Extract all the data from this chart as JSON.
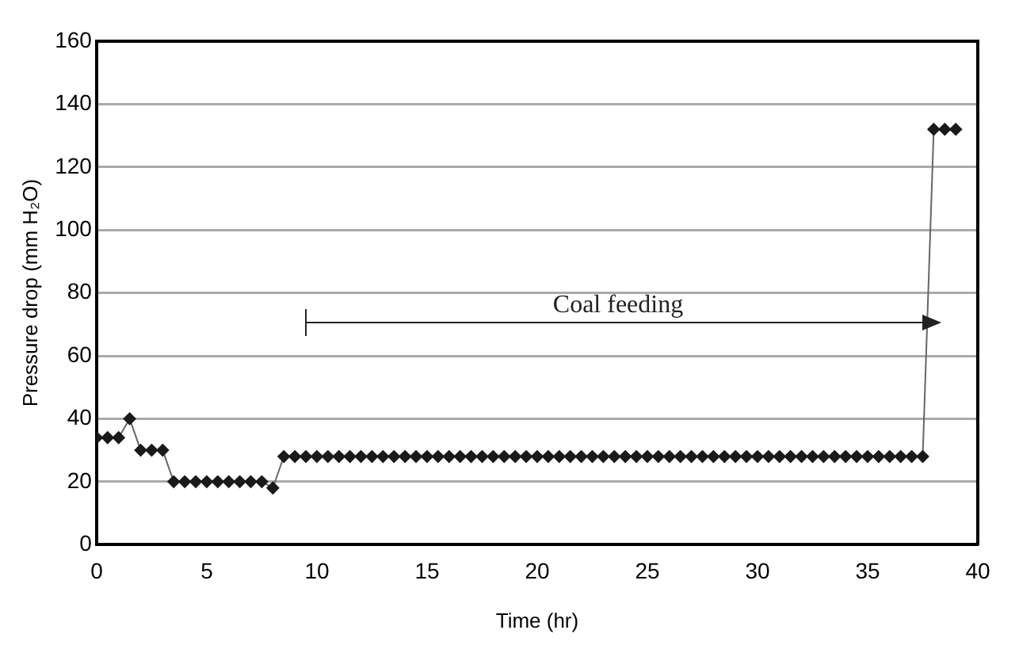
{
  "chart_data": {
    "type": "line",
    "xlabel": "Time (hr)",
    "ylabel": "Pressure drop (mm H₂O)",
    "x": [
      0,
      0.5,
      1,
      1.5,
      2,
      2.5,
      3,
      3.5,
      4,
      4.5,
      5,
      5.5,
      6,
      6.5,
      7,
      7.5,
      8,
      8.5,
      9,
      9.5,
      10,
      10.5,
      11,
      11.5,
      12,
      12.5,
      13,
      13.5,
      14,
      14.5,
      15,
      15.5,
      16,
      16.5,
      17,
      17.5,
      18,
      18.5,
      19,
      19.5,
      20,
      20.5,
      21,
      21.5,
      22,
      22.5,
      23,
      23.5,
      24,
      24.5,
      25,
      25.5,
      26,
      26.5,
      27,
      27.5,
      28,
      28.5,
      29,
      29.5,
      30,
      30.5,
      31,
      31.5,
      32,
      32.5,
      33,
      33.5,
      34,
      34.5,
      35,
      35.5,
      36,
      36.5,
      37,
      37.5,
      38,
      38.5,
      39
    ],
    "series": [
      {
        "color": "#1a1a1a",
        "values": [
          34,
          34,
          34,
          40,
          30,
          30,
          30,
          20,
          20,
          20,
          20,
          20,
          20,
          20,
          20,
          20,
          18,
          28,
          28,
          28,
          28,
          28,
          28,
          28,
          28,
          28,
          28,
          28,
          28,
          28,
          28,
          28,
          28,
          28,
          28,
          28,
          28,
          28,
          28,
          28,
          28,
          28,
          28,
          28,
          28,
          28,
          28,
          28,
          28,
          28,
          28,
          28,
          28,
          28,
          28,
          28,
          28,
          28,
          28,
          28,
          28,
          28,
          28,
          28,
          28,
          28,
          28,
          28,
          28,
          28,
          28,
          28,
          28,
          28,
          28,
          28,
          132,
          132,
          132
        ]
      }
    ],
    "xlim": [
      0,
      40
    ],
    "xticks": [
      0,
      5,
      10,
      15,
      20,
      25,
      30,
      35,
      40
    ],
    "ylim": [
      0,
      160
    ],
    "yticks": [
      0,
      20,
      40,
      60,
      80,
      100,
      120,
      140,
      160
    ],
    "grid": "y",
    "legend": false,
    "marker": "diamond",
    "line_style": "solid",
    "annotations": [
      "Coal feeding"
    ]
  }
}
